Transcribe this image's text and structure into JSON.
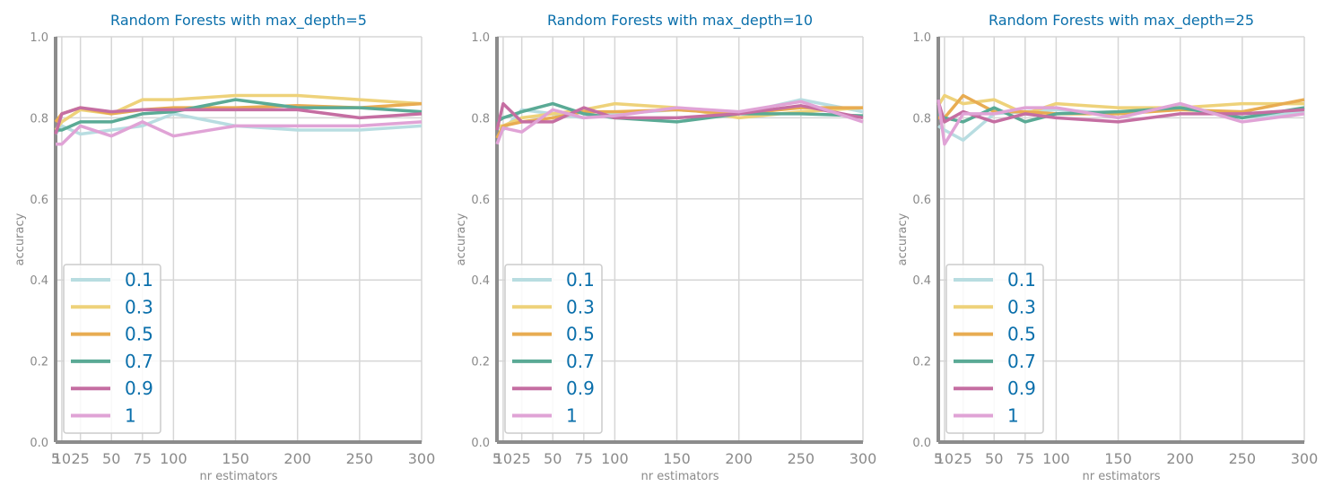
{
  "chart_data": [
    {
      "type": "line",
      "title": "Random Forests with max_depth=5",
      "xlabel": "nr estimators",
      "ylabel": "accuracy",
      "ylim": [
        0.0,
        1.0
      ],
      "xlim": [
        5,
        300
      ],
      "x": [
        5,
        10,
        25,
        50,
        75,
        100,
        150,
        200,
        250,
        300
      ],
      "xticks": [
        "5",
        "10",
        "25",
        "50",
        "75",
        "100",
        "150",
        "200",
        "250",
        "300"
      ],
      "yticks": [
        "0.0",
        "0.2",
        "0.4",
        "0.6",
        "0.8",
        "1.0"
      ],
      "grid": true,
      "legend_position": "lower-left",
      "series": [
        {
          "name": "0.1",
          "color": "#b8dde1",
          "values": [
            0.76,
            0.78,
            0.76,
            0.77,
            0.78,
            0.81,
            0.78,
            0.77,
            0.77,
            0.78
          ]
        },
        {
          "name": "0.3",
          "color": "#eed27a",
          "values": [
            0.77,
            0.79,
            0.82,
            0.81,
            0.845,
            0.845,
            0.855,
            0.855,
            0.845,
            0.835
          ]
        },
        {
          "name": "0.5",
          "color": "#e8ac52",
          "values": [
            0.79,
            0.81,
            0.825,
            0.81,
            0.82,
            0.825,
            0.825,
            0.83,
            0.825,
            0.835
          ]
        },
        {
          "name": "0.7",
          "color": "#5aaa95",
          "values": [
            0.77,
            0.77,
            0.79,
            0.79,
            0.81,
            0.815,
            0.845,
            0.825,
            0.825,
            0.815
          ]
        },
        {
          "name": "0.9",
          "color": "#c56ea2",
          "values": [
            0.76,
            0.81,
            0.825,
            0.815,
            0.82,
            0.82,
            0.82,
            0.82,
            0.8,
            0.81
          ]
        },
        {
          "name": "1",
          "color": "#e0a3d6",
          "values": [
            0.735,
            0.735,
            0.78,
            0.755,
            0.79,
            0.755,
            0.78,
            0.78,
            0.78,
            0.79
          ]
        }
      ]
    },
    {
      "type": "line",
      "title": "Random Forests with max_depth=10",
      "xlabel": "nr estimators",
      "ylabel": "accuracy",
      "ylim": [
        0.0,
        1.0
      ],
      "xlim": [
        5,
        300
      ],
      "x": [
        5,
        10,
        25,
        50,
        75,
        100,
        150,
        200,
        250,
        300
      ],
      "xticks": [
        "5",
        "10",
        "25",
        "50",
        "75",
        "100",
        "150",
        "200",
        "250",
        "300"
      ],
      "yticks": [
        "0.0",
        "0.2",
        "0.4",
        "0.6",
        "0.8",
        "1.0"
      ],
      "grid": true,
      "legend_position": "lower-left",
      "series": [
        {
          "name": "0.1",
          "color": "#b8dde1",
          "values": [
            0.78,
            0.77,
            0.82,
            0.81,
            0.8,
            0.81,
            0.82,
            0.81,
            0.845,
            0.815
          ]
        },
        {
          "name": "0.3",
          "color": "#eed27a",
          "values": [
            0.78,
            0.78,
            0.8,
            0.81,
            0.82,
            0.835,
            0.825,
            0.8,
            0.815,
            0.825
          ]
        },
        {
          "name": "0.5",
          "color": "#e8ac52",
          "values": [
            0.75,
            0.78,
            0.79,
            0.8,
            0.815,
            0.815,
            0.82,
            0.81,
            0.825,
            0.825
          ]
        },
        {
          "name": "0.7",
          "color": "#5aaa95",
          "values": [
            0.79,
            0.8,
            0.815,
            0.835,
            0.81,
            0.8,
            0.79,
            0.81,
            0.81,
            0.805
          ]
        },
        {
          "name": "0.9",
          "color": "#c56ea2",
          "values": [
            0.77,
            0.835,
            0.79,
            0.79,
            0.825,
            0.8,
            0.8,
            0.81,
            0.83,
            0.8
          ]
        },
        {
          "name": "1",
          "color": "#e0a3d6",
          "values": [
            0.735,
            0.775,
            0.765,
            0.82,
            0.8,
            0.805,
            0.825,
            0.815,
            0.84,
            0.79
          ]
        }
      ]
    },
    {
      "type": "line",
      "title": "Random Forests with max_depth=25",
      "xlabel": "nr estimators",
      "ylabel": "accuracy",
      "ylim": [
        0.0,
        1.0
      ],
      "xlim": [
        5,
        300
      ],
      "x": [
        5,
        10,
        25,
        50,
        75,
        100,
        150,
        200,
        250,
        300
      ],
      "xticks": [
        "5",
        "10",
        "25",
        "50",
        "75",
        "100",
        "150",
        "200",
        "250",
        "300"
      ],
      "yticks": [
        "0.0",
        "0.2",
        "0.4",
        "0.6",
        "0.8",
        "1.0"
      ],
      "grid": true,
      "legend_position": "lower-left",
      "series": [
        {
          "name": "0.1",
          "color": "#b8dde1",
          "values": [
            0.78,
            0.77,
            0.745,
            0.81,
            0.815,
            0.82,
            0.81,
            0.83,
            0.8,
            0.815
          ]
        },
        {
          "name": "0.3",
          "color": "#eed27a",
          "values": [
            0.83,
            0.855,
            0.835,
            0.845,
            0.81,
            0.835,
            0.825,
            0.825,
            0.835,
            0.835
          ]
        },
        {
          "name": "0.5",
          "color": "#e8ac52",
          "values": [
            0.8,
            0.8,
            0.855,
            0.815,
            0.815,
            0.81,
            0.81,
            0.82,
            0.815,
            0.845
          ]
        },
        {
          "name": "0.7",
          "color": "#5aaa95",
          "values": [
            0.81,
            0.8,
            0.79,
            0.825,
            0.79,
            0.81,
            0.815,
            0.825,
            0.8,
            0.825
          ]
        },
        {
          "name": "0.9",
          "color": "#c56ea2",
          "values": [
            0.84,
            0.79,
            0.815,
            0.79,
            0.81,
            0.8,
            0.79,
            0.81,
            0.81,
            0.82
          ]
        },
        {
          "name": "1",
          "color": "#e0a3d6",
          "values": [
            0.845,
            0.735,
            0.81,
            0.81,
            0.825,
            0.825,
            0.8,
            0.835,
            0.79,
            0.81
          ]
        }
      ]
    }
  ]
}
